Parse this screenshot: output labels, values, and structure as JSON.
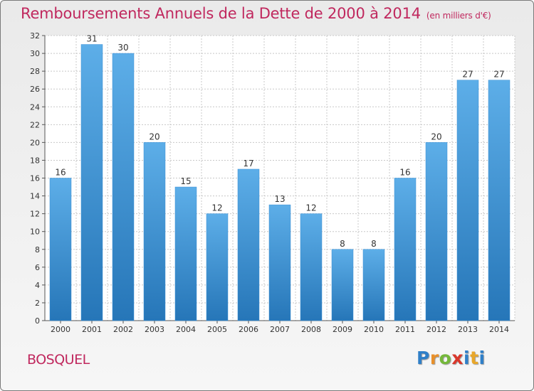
{
  "title": "Remboursements Annuels de la Dette de 2000 à 2014",
  "subtitle": "(en milliers d'€)",
  "commune": "BOSQUEL",
  "logo": {
    "p": "P",
    "r": "r",
    "o": "o",
    "x": "x",
    "i": "i",
    "t": "t",
    "i2": "i"
  },
  "colors": {
    "title": "#c0285e",
    "bar_top": "#5daee8",
    "bar_bottom": "#2676b8"
  },
  "chart_data": {
    "type": "bar",
    "title": "Remboursements Annuels de la Dette de 2000 à 2014",
    "subtitle": "(en milliers d'€)",
    "categories": [
      "2000",
      "2001",
      "2002",
      "2003",
      "2004",
      "2005",
      "2006",
      "2007",
      "2008",
      "2009",
      "2010",
      "2011",
      "2012",
      "2013",
      "2014"
    ],
    "values": [
      16,
      31,
      30,
      20,
      15,
      12,
      17,
      13,
      12,
      8,
      8,
      16,
      20,
      27,
      27
    ],
    "ylim": [
      0,
      32
    ],
    "yticks": [
      0,
      2,
      4,
      6,
      8,
      10,
      12,
      14,
      16,
      18,
      20,
      22,
      24,
      26,
      28,
      30,
      32
    ],
    "xlabel": "",
    "ylabel": "",
    "grid": true
  }
}
